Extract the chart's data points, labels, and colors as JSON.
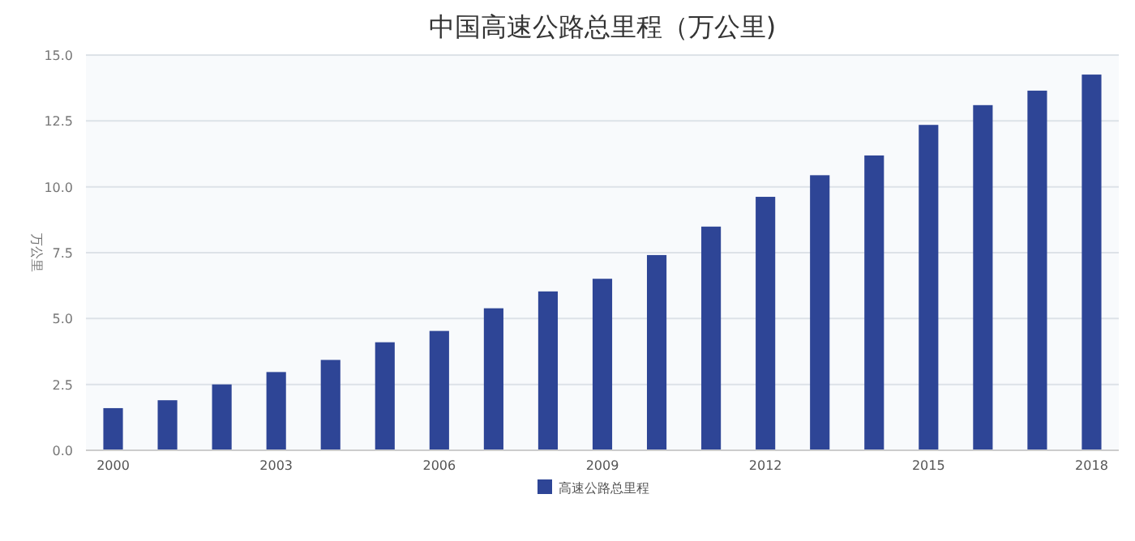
{
  "chart_data": {
    "type": "bar",
    "title": "中国高速公路总里程（万公里)",
    "ylabel": "万公里",
    "categories": [
      "2000",
      null,
      null,
      "2003",
      null,
      null,
      "2006",
      null,
      null,
      "2009",
      null,
      null,
      "2012",
      null,
      null,
      "2015",
      null,
      null,
      "2018"
    ],
    "series": [
      {
        "name": "高速公路总里程",
        "color": "#2e4596",
        "values": [
          1.6,
          1.9,
          2.5,
          2.97,
          3.43,
          4.1,
          4.53,
          5.39,
          6.03,
          6.51,
          7.41,
          8.49,
          9.62,
          10.44,
          11.19,
          12.35,
          13.1,
          13.65,
          14.26
        ]
      }
    ],
    "ylim": [
      0,
      15
    ],
    "yticks": [
      {
        "value": 0,
        "label": "0.0"
      },
      {
        "value": 2.5,
        "label": "2.5"
      },
      {
        "value": 5,
        "label": "5.0"
      },
      {
        "value": 7.5,
        "label": "7.5"
      },
      {
        "value": 10,
        "label": "10.0"
      },
      {
        "value": 12.5,
        "label": "12.5"
      },
      {
        "value": 15,
        "label": "15.0"
      }
    ],
    "grid": "y",
    "legend": "bottom"
  }
}
